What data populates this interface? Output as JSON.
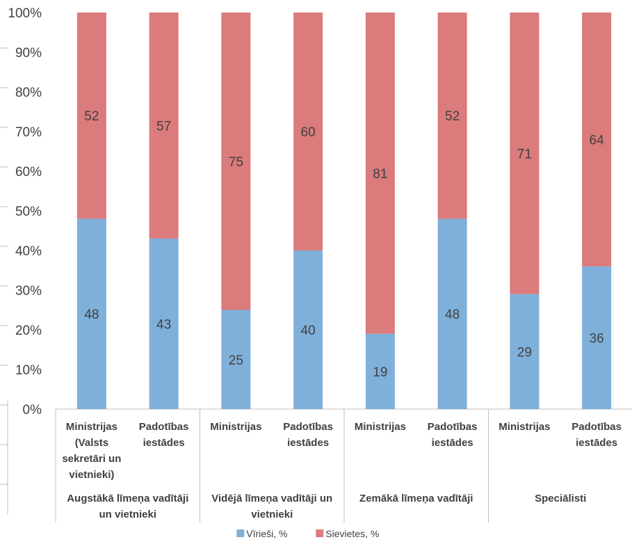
{
  "chart_data": {
    "type": "bar",
    "stacked": true,
    "percent": true,
    "ylim": [
      0,
      100
    ],
    "yticks": [
      0,
      10,
      20,
      30,
      40,
      50,
      60,
      70,
      80,
      90,
      100
    ],
    "ytick_labels": [
      "0%",
      "10%",
      "20%",
      "30%",
      "40%",
      "50%",
      "60%",
      "70%",
      "80%",
      "90%",
      "100%"
    ],
    "grid": false,
    "legend_position": "bottom",
    "categories": [
      [
        "Ministrijas",
        "(Valsts",
        "sekretāri un",
        "vietnieki)"
      ],
      [
        "Padotības",
        "iestādes"
      ],
      [
        "Ministrijas"
      ],
      [
        "Padotības",
        "iestādes"
      ],
      [
        "Ministrijas"
      ],
      [
        "Padotības",
        "iestādes"
      ],
      [
        "Ministrijas"
      ],
      [
        "Padotības",
        "iestādes"
      ]
    ],
    "groups": [
      {
        "label": [
          "Augstākā līmeņa vadītāji",
          "un vietnieki"
        ],
        "start": 0,
        "count": 2
      },
      {
        "label": [
          "Vidējā līmeņa vadītāji un",
          "vietnieki"
        ],
        "start": 2,
        "count": 2
      },
      {
        "label": [
          "Zemākā līmeņa vadītāji"
        ],
        "start": 4,
        "count": 2
      },
      {
        "label": [
          "Speciālisti"
        ],
        "start": 6,
        "count": 2
      }
    ],
    "series": [
      {
        "name": "Vīrieši, %",
        "color": "#7fb0d9",
        "values": [
          48,
          43,
          25,
          40,
          19,
          48,
          29,
          36
        ]
      },
      {
        "name": "Sievietes, %",
        "color": "#db7b7b",
        "values": [
          52,
          57,
          75,
          60,
          81,
          52,
          71,
          64
        ]
      }
    ]
  }
}
